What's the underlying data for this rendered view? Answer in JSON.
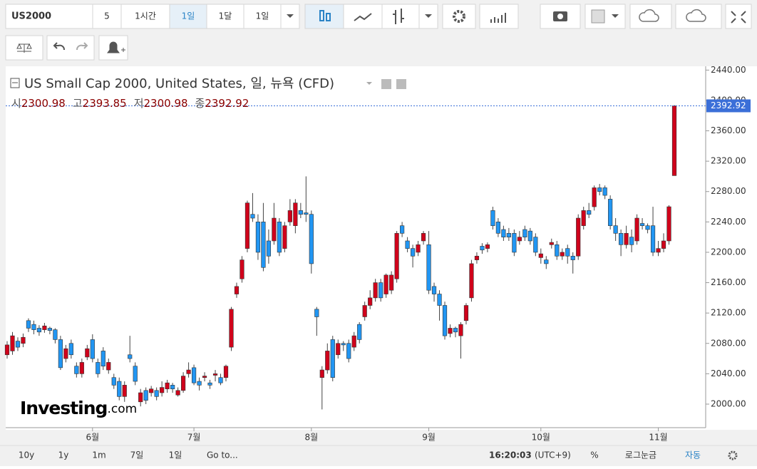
{
  "toolbar": {
    "symbol": "US2000",
    "buttons": [
      "5",
      "1시간",
      "1일",
      "1달",
      "1일"
    ],
    "active": 2
  },
  "footer": {
    "ranges": [
      "10y",
      "1y",
      "1m",
      "7일",
      "1일"
    ],
    "goto": "Go to...",
    "time": "16:20:03",
    "timezone": "(UTC+9)",
    "percent": "%",
    "log": "로그눈금",
    "auto": "자동"
  },
  "watermark": {
    "brand": "Investing",
    "suffix": ".com"
  },
  "chart_data": {
    "type": "candlestick",
    "title": "US Small Cap 2000, United States, 일, 뉴욕 (CFD)",
    "ohlc_labels": [
      "시",
      "고",
      "저",
      "종"
    ],
    "up_color": "#d0021b",
    "down_color": "#2196f3",
    "categories": [
      null,
      null,
      null,
      null,
      null,
      null,
      null,
      null,
      null,
      null,
      null,
      null,
      null,
      null,
      null,
      null,
      "6월",
      null,
      null,
      null,
      null,
      null,
      null,
      null,
      null,
      null,
      null,
      null,
      null,
      null,
      null,
      null,
      null,
      null,
      null,
      "7월",
      null,
      null,
      null,
      null,
      null,
      null,
      null,
      null,
      null,
      null,
      null,
      null,
      null,
      null,
      null,
      null,
      null,
      null,
      null,
      null,
      null,
      "8월",
      null,
      null,
      null,
      null,
      null,
      null,
      null,
      null,
      null,
      null,
      null,
      null,
      null,
      null,
      null,
      null,
      null,
      null,
      null,
      null,
      null,
      "9월",
      null,
      null,
      null,
      null,
      null,
      null,
      null,
      null,
      null,
      null,
      null,
      null,
      null,
      null,
      null,
      null,
      null,
      null,
      null,
      null,
      "10월",
      null,
      null,
      null,
      null,
      null,
      null,
      null,
      null,
      null,
      null,
      null,
      null,
      null,
      null,
      null,
      null,
      null,
      null,
      null,
      null,
      null,
      "11월",
      null,
      null,
      null
    ],
    "open": [
      2065,
      2070,
      2083,
      2080,
      2110,
      2105,
      2100,
      2098,
      2100,
      2098,
      2085,
      2060,
      2080,
      2050,
      2040,
      2062,
      2085,
      2055,
      2070,
      2045,
      2035,
      2030,
      2010,
      2065,
      2050,
      2003,
      2018,
      2015,
      2018,
      2015,
      2020,
      2025,
      2012,
      2018,
      2040,
      2048,
      2030,
      2035,
      2028,
      2038,
      2035,
      2035,
      2075,
      2145,
      2165,
      2205,
      2250,
      2240,
      2240,
      2215,
      2215,
      2240,
      2205,
      2240,
      2235,
      2255,
      2252,
      2250,
      2125,
      2035,
      2045,
      2085,
      2065,
      2080,
      2080,
      2075,
      2105,
      2115,
      2130,
      2140,
      2160,
      2145,
      2150,
      2165,
      2235,
      2215,
      2205,
      2200,
      2215,
      2210,
      2155,
      2145,
      2130,
      2093,
      2100,
      2090,
      2110,
      2140,
      2190,
      2208,
      2205,
      2255,
      2240,
      2230,
      2225,
      2225,
      2215,
      2230,
      2228,
      2220,
      2193,
      2190,
      2210,
      2210,
      2195,
      2205,
      2195,
      2195,
      2235,
      2255,
      2260,
      2285,
      2285,
      2270,
      2235,
      2225,
      2210,
      2220,
      2215,
      2238,
      2235,
      2235,
      2200,
      2205,
      2215,
      2300.98
    ],
    "high": [
      2083,
      2095,
      2088,
      2093,
      2113,
      2110,
      2104,
      2107,
      2102,
      2100,
      2090,
      2078,
      2085,
      2055,
      2060,
      2078,
      2092,
      2060,
      2075,
      2060,
      2040,
      2035,
      2030,
      2090,
      2055,
      2020,
      2022,
      2024,
      2022,
      2030,
      2032,
      2028,
      2022,
      2042,
      2055,
      2052,
      2035,
      2042,
      2032,
      2045,
      2040,
      2052,
      2128,
      2160,
      2195,
      2268,
      2278,
      2250,
      2265,
      2230,
      2265,
      2245,
      2240,
      2270,
      2270,
      2265,
      2300,
      2255,
      2128,
      2050,
      2080,
      2090,
      2085,
      2083,
      2085,
      2095,
      2108,
      2135,
      2150,
      2165,
      2165,
      2172,
      2175,
      2228,
      2240,
      2220,
      2210,
      2215,
      2228,
      2228,
      2160,
      2150,
      2135,
      2105,
      2102,
      2108,
      2133,
      2190,
      2200,
      2212,
      2213,
      2260,
      2245,
      2235,
      2232,
      2230,
      2228,
      2235,
      2232,
      2225,
      2205,
      2195,
      2218,
      2215,
      2205,
      2210,
      2200,
      2250,
      2260,
      2265,
      2288,
      2290,
      2288,
      2275,
      2245,
      2230,
      2235,
      2230,
      2250,
      2245,
      2238,
      2260,
      2215,
      2225,
      2262,
      2393.85
    ],
    "low": [
      2060,
      2065,
      2070,
      2075,
      2095,
      2092,
      2090,
      2094,
      2092,
      2080,
      2045,
      2055,
      2060,
      2035,
      2035,
      2058,
      2055,
      2035,
      2045,
      2040,
      2020,
      2005,
      2003,
      2055,
      2025,
      1997,
      2000,
      2010,
      2005,
      2010,
      2015,
      2015,
      2010,
      2015,
      2035,
      2025,
      2018,
      2030,
      2020,
      2030,
      2025,
      2030,
      2070,
      2140,
      2160,
      2200,
      2240,
      2190,
      2175,
      2185,
      2210,
      2195,
      2200,
      2235,
      2225,
      2245,
      2240,
      2172,
      2090,
      1993,
      2040,
      2030,
      2060,
      2070,
      2055,
      2070,
      2080,
      2110,
      2125,
      2135,
      2135,
      2140,
      2145,
      2160,
      2220,
      2200,
      2180,
      2195,
      2210,
      2145,
      2135,
      2110,
      2085,
      2088,
      2088,
      2060,
      2105,
      2135,
      2185,
      2198,
      2200,
      2230,
      2220,
      2215,
      2215,
      2195,
      2210,
      2215,
      2210,
      2195,
      2185,
      2178,
      2205,
      2190,
      2190,
      2185,
      2172,
      2190,
      2230,
      2245,
      2255,
      2275,
      2270,
      2230,
      2215,
      2195,
      2205,
      2200,
      2210,
      2230,
      2225,
      2195,
      2195,
      2200,
      2210,
      2300.98
    ],
    "close": [
      2078,
      2090,
      2075,
      2088,
      2100,
      2098,
      2095,
      2103,
      2097,
      2085,
      2048,
      2073,
      2065,
      2040,
      2055,
      2073,
      2060,
      2040,
      2050,
      2055,
      2025,
      2010,
      2025,
      2060,
      2030,
      2015,
      2005,
      2020,
      2010,
      2022,
      2028,
      2020,
      2018,
      2037,
      2045,
      2028,
      2025,
      2037,
      2025,
      2040,
      2028,
      2050,
      2125,
      2155,
      2190,
      2265,
      2245,
      2200,
      2180,
      2195,
      2245,
      2200,
      2235,
      2255,
      2265,
      2250,
      2250,
      2185,
      2115,
      2045,
      2070,
      2035,
      2080,
      2078,
      2060,
      2090,
      2085,
      2130,
      2140,
      2160,
      2140,
      2170,
      2170,
      2225,
      2225,
      2205,
      2195,
      2210,
      2225,
      2150,
      2145,
      2130,
      2090,
      2100,
      2095,
      2105,
      2130,
      2185,
      2195,
      2203,
      2210,
      2235,
      2225,
      2220,
      2220,
      2200,
      2220,
      2220,
      2215,
      2200,
      2198,
      2185,
      2213,
      2195,
      2200,
      2195,
      2190,
      2245,
      2255,
      2250,
      2285,
      2280,
      2275,
      2235,
      2225,
      2210,
      2225,
      2210,
      2245,
      2235,
      2230,
      2200,
      2205,
      2215,
      2260,
      2392.92
    ],
    "ylim": [
      1969,
      2445
    ],
    "yticks": [
      {
        "value": 2000,
        "label": "2000.00"
      },
      {
        "value": 2040,
        "label": "2040.00"
      },
      {
        "value": 2080,
        "label": "2080.00"
      },
      {
        "value": 2120,
        "label": "2120.00"
      },
      {
        "value": 2160,
        "label": "2160.00"
      },
      {
        "value": 2200,
        "label": "2200.00"
      },
      {
        "value": 2240,
        "label": "2240.00"
      },
      {
        "value": 2280,
        "label": "2280.00"
      },
      {
        "value": 2320,
        "label": "2320.00"
      },
      {
        "value": 2360,
        "label": "2360.00"
      },
      {
        "value": 2400,
        "label": "2400.00"
      },
      {
        "value": 2440,
        "label": "2440.00"
      }
    ]
  }
}
